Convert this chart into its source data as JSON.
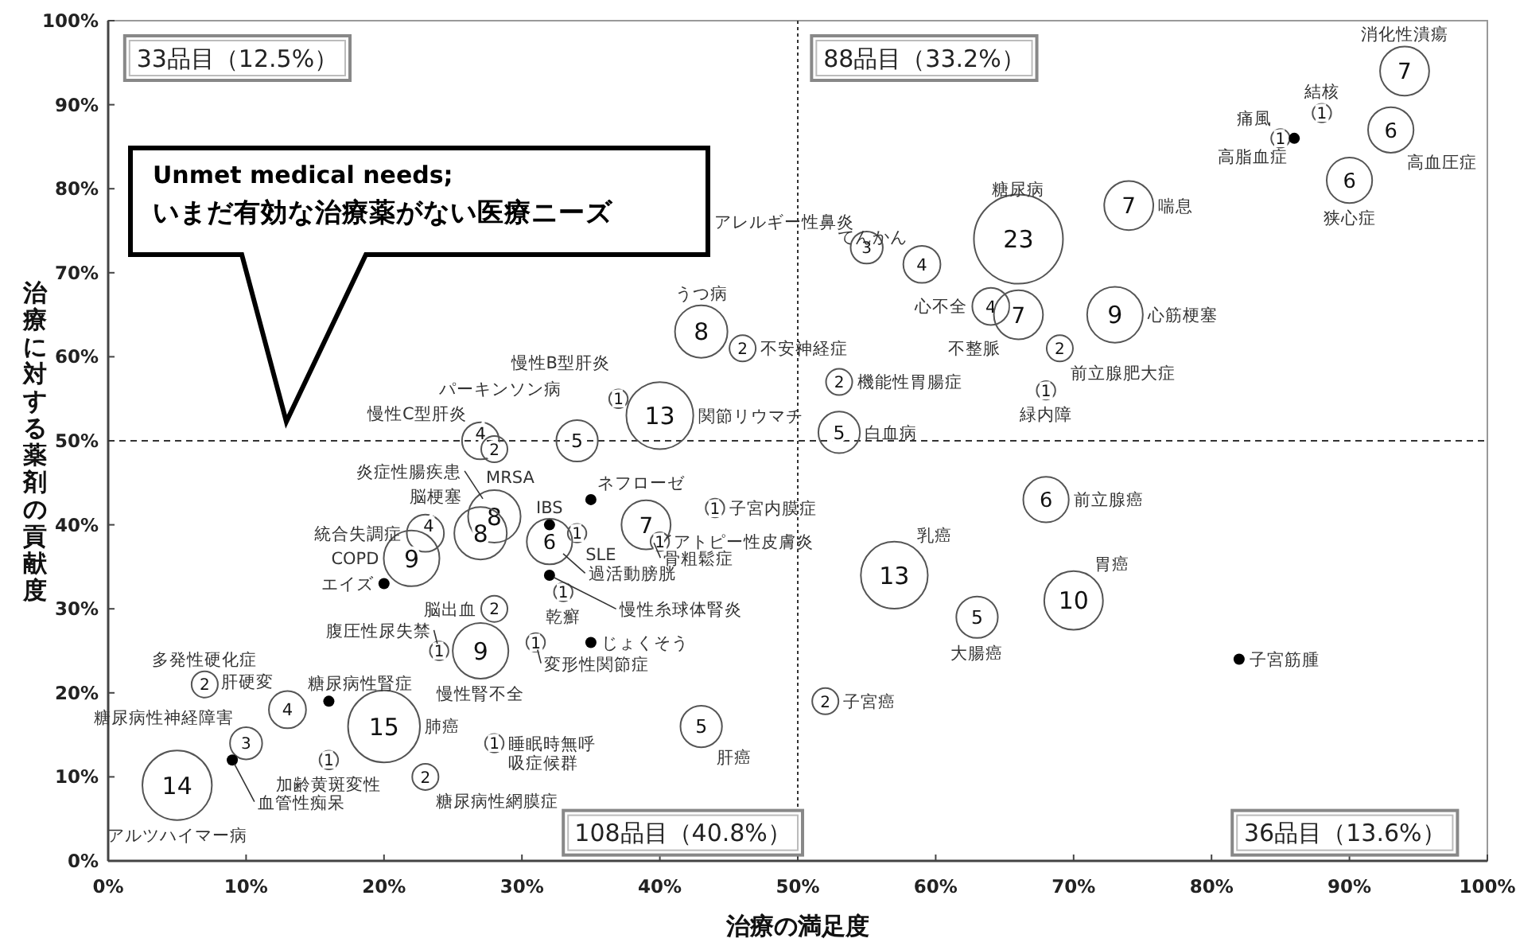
{
  "chart_data": {
    "type": "bubble",
    "xlabel": "治療の満足度",
    "ylabel": "治療に対する薬剤の貢献度",
    "xlim": [
      0,
      100
    ],
    "ylim": [
      0,
      100
    ],
    "xticks": [
      {
        "value": 0,
        "label": "0%"
      },
      {
        "value": 10,
        "label": "10%"
      },
      {
        "value": 20,
        "label": "20%"
      },
      {
        "value": 30,
        "label": "30%"
      },
      {
        "value": 40,
        "label": "40%"
      },
      {
        "value": 50,
        "label": "50%"
      },
      {
        "value": 60,
        "label": "60%"
      },
      {
        "value": 70,
        "label": "70%"
      },
      {
        "value": 80,
        "label": "80%"
      },
      {
        "value": 90,
        "label": "90%"
      },
      {
        "value": 100,
        "label": "100%"
      }
    ],
    "yticks": [
      {
        "value": 0,
        "label": "0%"
      },
      {
        "value": 10,
        "label": "10%"
      },
      {
        "value": 20,
        "label": "20%"
      },
      {
        "value": 30,
        "label": "30%"
      },
      {
        "value": 40,
        "label": "40%"
      },
      {
        "value": 50,
        "label": "50%"
      },
      {
        "value": 60,
        "label": "60%"
      },
      {
        "value": 70,
        "label": "70%"
      },
      {
        "value": 80,
        "label": "80%"
      },
      {
        "value": 90,
        "label": "90%"
      },
      {
        "value": 100,
        "label": "100%"
      }
    ],
    "x": [
      94,
      88,
      85,
      86,
      93,
      90,
      74,
      66,
      55,
      59,
      64,
      66,
      73,
      69,
      68,
      53,
      53,
      68,
      57,
      63,
      70,
      82,
      52,
      43,
      46,
      40,
      37,
      34,
      27,
      28,
      28,
      27,
      23,
      22,
      20,
      32,
      34,
      32,
      35,
      39,
      40,
      44,
      32,
      33,
      28,
      24,
      27,
      31,
      35,
      28,
      43,
      23,
      20,
      16,
      16,
      13,
      7,
      10,
      9,
      5
    ],
    "values": [
      94,
      89,
      86,
      86,
      87,
      81,
      78,
      74,
      73,
      71,
      66,
      65,
      65,
      61,
      56,
      57,
      51,
      43,
      34,
      29,
      31,
      24,
      19,
      63,
      61,
      53,
      55,
      50,
      50,
      49,
      41,
      39,
      39,
      36,
      33,
      40,
      39,
      38,
      43,
      40,
      38,
      42,
      34,
      32,
      30,
      25,
      25,
      26,
      26,
      14,
      16,
      10,
      16,
      12,
      19,
      18,
      21,
      14,
      12,
      9
    ],
    "sizes": [
      7,
      1,
      1,
      null,
      6,
      6,
      7,
      23,
      3,
      4,
      4,
      7,
      9,
      2,
      1,
      2,
      5,
      6,
      13,
      5,
      10,
      null,
      2,
      8,
      2,
      13,
      1,
      5,
      4,
      2,
      8,
      8,
      4,
      9,
      null,
      null,
      1,
      6,
      null,
      7,
      1,
      1,
      null,
      1,
      2,
      1,
      9,
      1,
      null,
      1,
      5,
      2,
      15,
      1,
      null,
      4,
      2,
      3,
      null,
      14
    ],
    "value_labels": [
      "7",
      "1",
      "1",
      null,
      "6",
      "6",
      "7",
      "23",
      "3",
      "4",
      "4",
      "7",
      "9",
      "2",
      "1",
      "2",
      "5",
      "6",
      "13",
      "5",
      "10",
      null,
      "2",
      "8",
      "2",
      "13",
      "1",
      "5",
      "4",
      "2",
      "8",
      "8",
      "4",
      "9",
      null,
      null,
      "1",
      "6",
      null,
      "7",
      "1",
      "1",
      null,
      "1",
      "2",
      "1",
      "9",
      "1",
      null,
      "1",
      "5",
      "2",
      "15",
      "1",
      null,
      "4",
      "2",
      "3",
      null,
      "14"
    ],
    "ref_lines": [
      {
        "axis": "x",
        "value": 50,
        "line_style": "dotted"
      },
      {
        "axis": "y",
        "value": 50,
        "line_style": "dashed"
      }
    ],
    "annotations": [
      {
        "text": "消化性潰瘍",
        "x": 94,
        "y": 94
      },
      {
        "text": "結核",
        "x": 88,
        "y": 89
      },
      {
        "text": "痛風",
        "x": 85,
        "y": 86
      },
      {
        "text": "高脂血症",
        "x": 86,
        "y": 86
      },
      {
        "text": "高血圧症",
        "x": 93,
        "y": 87
      },
      {
        "text": "狭心症",
        "x": 90,
        "y": 81
      },
      {
        "text": "喘息",
        "x": 74,
        "y": 78
      },
      {
        "text": "糖尿病",
        "x": 66,
        "y": 74
      },
      {
        "text": "アレルギー性鼻炎",
        "x": 55,
        "y": 73
      },
      {
        "text": "てんかん",
        "x": 59,
        "y": 71
      },
      {
        "text": "心不全",
        "x": 64,
        "y": 66
      },
      {
        "text": "不整脈",
        "x": 66,
        "y": 65
      },
      {
        "text": "心筋梗塞",
        "x": 73,
        "y": 65
      },
      {
        "text": "前立腺肥大症",
        "x": 69,
        "y": 61
      },
      {
        "text": "緑内障",
        "x": 68,
        "y": 56
      },
      {
        "text": "機能性胃腸症",
        "x": 53,
        "y": 57
      },
      {
        "text": "白血病",
        "x": 53,
        "y": 51
      },
      {
        "text": "前立腺癌",
        "x": 68,
        "y": 43
      },
      {
        "text": "乳癌",
        "x": 57,
        "y": 34
      },
      {
        "text": "大腸癌",
        "x": 63,
        "y": 29
      },
      {
        "text": "胃癌",
        "x": 70,
        "y": 31
      },
      {
        "text": "子宮筋腫",
        "x": 82,
        "y": 24
      },
      {
        "text": "子宮癌",
        "x": 52,
        "y": 19
      },
      {
        "text": "うつ病",
        "x": 43,
        "y": 63
      },
      {
        "text": "不安神経症",
        "x": 46,
        "y": 61
      },
      {
        "text": "関節リウマチ",
        "x": 40,
        "y": 53
      },
      {
        "text": "慢性B型肝炎",
        "x": 37,
        "y": 55
      },
      {
        "text": "パーキンソン病",
        "x": 34,
        "y": 50
      },
      {
        "text": "慢性C型肝炎",
        "x": 27,
        "y": 50
      },
      {
        "text": "MRSA",
        "x": 28,
        "y": 49
      },
      {
        "text": "炎症性腸疾患",
        "x": 28,
        "y": 41
      },
      {
        "text": "脳梗塞",
        "x": 27,
        "y": 39
      },
      {
        "text": "統合失調症",
        "x": 23,
        "y": 39
      },
      {
        "text": "COPD",
        "x": 22,
        "y": 36
      },
      {
        "text": "エイズ",
        "x": 20,
        "y": 33
      },
      {
        "text": "IBS",
        "x": 32,
        "y": 40
      },
      {
        "text": "SLE",
        "x": 34,
        "y": 39
      },
      {
        "text": "過活動膀胱",
        "x": 32,
        "y": 38
      },
      {
        "text": "ネフローゼ",
        "x": 35,
        "y": 43
      },
      {
        "text": "骨粗鬆症",
        "x": 39,
        "y": 40
      },
      {
        "text": "アトピー性皮膚炎",
        "x": 40,
        "y": 38
      },
      {
        "text": "子宮内膜症",
        "x": 44,
        "y": 42
      },
      {
        "text": "慢性糸球体腎炎",
        "x": 32,
        "y": 34
      },
      {
        "text": "乾癬",
        "x": 33,
        "y": 32
      },
      {
        "text": "脳出血",
        "x": 28,
        "y": 30
      },
      {
        "text": "腹圧性尿失禁",
        "x": 24,
        "y": 25
      },
      {
        "text": "慢性腎不全",
        "x": 27,
        "y": 25
      },
      {
        "text": "変形性関節症",
        "x": 31,
        "y": 26
      },
      {
        "text": "じょくそう",
        "x": 35,
        "y": 26
      },
      {
        "text": "睡眠時無呼吸症候群",
        "x": 28,
        "y": 14
      },
      {
        "text": "肝癌",
        "x": 43,
        "y": 16
      },
      {
        "text": "糖尿病性網膜症",
        "x": 23,
        "y": 10
      },
      {
        "text": "肺癌",
        "x": 20,
        "y": 16
      },
      {
        "text": "加齢黄斑変性",
        "x": 16,
        "y": 12
      },
      {
        "text": "糖尿病性腎症",
        "x": 16,
        "y": 19
      },
      {
        "text": "肝硬変",
        "x": 13,
        "y": 18
      },
      {
        "text": "多発性硬化症",
        "x": 7,
        "y": 21
      },
      {
        "text": "糖尿病性神経障害",
        "x": 10,
        "y": 14
      },
      {
        "text": "血管性痴呆",
        "x": 9,
        "y": 12
      },
      {
        "text": "アルツハイマー病",
        "x": 5,
        "y": 9
      },
      "33品目（12.5%）",
      "88品目（33.2%）",
      "108品目（40.8%）",
      "36品目（13.6%）",
      "Unmet medical needs;\nいまだ有効な治療薬がない医療ニーズ"
    ]
  }
}
